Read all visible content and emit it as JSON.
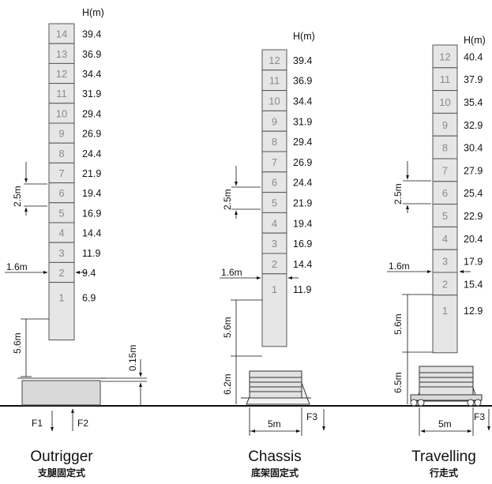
{
  "towers": [
    {
      "key": "outrigger",
      "title": "Outrigger",
      "subtitle": "支腿固定式",
      "h_unit": "H(m)",
      "segments": [
        "14",
        "13",
        "12",
        "11",
        "10",
        "9",
        "8",
        "7",
        "6",
        "5",
        "4",
        "3",
        "2",
        "1"
      ],
      "heights": [
        "39.4",
        "36.9",
        "34.4",
        "31.9",
        "29.4",
        "26.9",
        "24.4",
        "21.9",
        "19.4",
        "16.9",
        "14.4",
        "11.9",
        "9.4",
        "6.9"
      ],
      "dim_segment": "2.5m",
      "dim_width": "1.6m",
      "dim_base": "5.6m",
      "dim_gap": "0.15m",
      "force_left": "F1",
      "force_right": "F2"
    },
    {
      "key": "chassis",
      "title": "Chassis",
      "subtitle": "底架固定式",
      "h_unit": "H(m)",
      "segments": [
        "12",
        "11",
        "10",
        "9",
        "8",
        "7",
        "6",
        "5",
        "4",
        "3",
        "2",
        "1"
      ],
      "heights": [
        "39.4",
        "36.9",
        "34.4",
        "31.9",
        "29.4",
        "26.9",
        "24.4",
        "21.9",
        "19.4",
        "16.9",
        "14.4",
        "11.9"
      ],
      "dim_segment": "2.5m",
      "dim_width": "1.6m",
      "dim_base": "5.6m",
      "dim_chassis": "6.2m",
      "dim_span": "5m",
      "force": "F3"
    },
    {
      "key": "travelling",
      "title": "Travelling",
      "subtitle": "行走式",
      "h_unit": "H(m)",
      "segments": [
        "12",
        "11",
        "10",
        "9",
        "8",
        "7",
        "6",
        "5",
        "4",
        "3",
        "2",
        "1"
      ],
      "heights": [
        "40.4",
        "37.9",
        "35.4",
        "32.9",
        "30.4",
        "27.9",
        "25.4",
        "22.9",
        "20.4",
        "17.9",
        "15.4",
        "12.9"
      ],
      "dim_segment": "2.5m",
      "dim_width": "1.6m",
      "dim_base": "5.6m",
      "dim_chassis": "6.5m",
      "dim_span": "5m",
      "force": "F3"
    }
  ]
}
